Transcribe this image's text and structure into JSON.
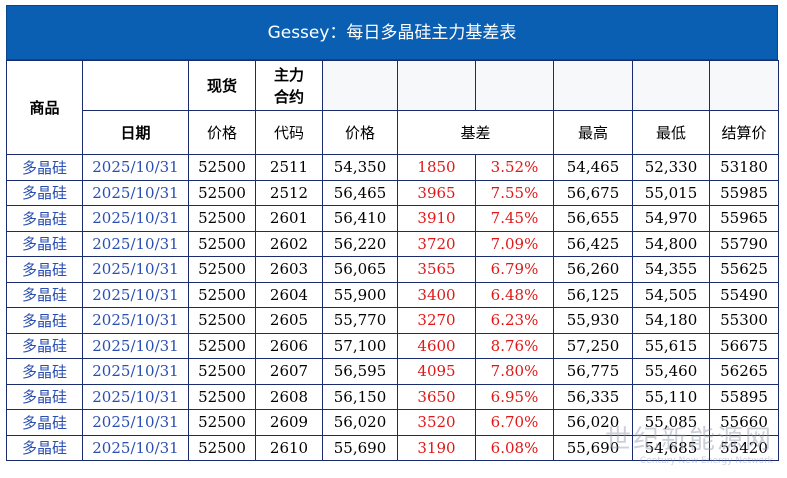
{
  "title": "Gessey：每日多晶硅主力基差表",
  "headers": {
    "product": "商品",
    "spot": "现货",
    "main_contract": "主力\n合约",
    "date": "日期",
    "spot_price": "价格",
    "code": "代码",
    "price": "价格",
    "basis": "基差",
    "high": "最高",
    "low": "最低",
    "settle": "结算价"
  },
  "rows": [
    {
      "product": "多晶硅",
      "date": "2025/10/31",
      "spot": "52500",
      "code": "2511",
      "price": "54,350",
      "basis": "1850",
      "basis_pct": "3.52%",
      "high": "54,465",
      "low": "52,330",
      "settle": "53180"
    },
    {
      "product": "多晶硅",
      "date": "2025/10/31",
      "spot": "52500",
      "code": "2512",
      "price": "56,465",
      "basis": "3965",
      "basis_pct": "7.55%",
      "high": "56,675",
      "low": "55,015",
      "settle": "55985"
    },
    {
      "product": "多晶硅",
      "date": "2025/10/31",
      "spot": "52500",
      "code": "2601",
      "price": "56,410",
      "basis": "3910",
      "basis_pct": "7.45%",
      "high": "56,655",
      "low": "54,970",
      "settle": "55965"
    },
    {
      "product": "多晶硅",
      "date": "2025/10/31",
      "spot": "52500",
      "code": "2602",
      "price": "56,220",
      "basis": "3720",
      "basis_pct": "7.09%",
      "high": "56,425",
      "low": "54,800",
      "settle": "55790"
    },
    {
      "product": "多晶硅",
      "date": "2025/10/31",
      "spot": "52500",
      "code": "2603",
      "price": "56,065",
      "basis": "3565",
      "basis_pct": "6.79%",
      "high": "56,260",
      "low": "54,355",
      "settle": "55625"
    },
    {
      "product": "多晶硅",
      "date": "2025/10/31",
      "spot": "52500",
      "code": "2604",
      "price": "55,900",
      "basis": "3400",
      "basis_pct": "6.48%",
      "high": "56,125",
      "low": "54,505",
      "settle": "55490"
    },
    {
      "product": "多晶硅",
      "date": "2025/10/31",
      "spot": "52500",
      "code": "2605",
      "price": "55,770",
      "basis": "3270",
      "basis_pct": "6.23%",
      "high": "55,930",
      "low": "54,180",
      "settle": "55300"
    },
    {
      "product": "多晶硅",
      "date": "2025/10/31",
      "spot": "52500",
      "code": "2606",
      "price": "57,100",
      "basis": "4600",
      "basis_pct": "8.76%",
      "high": "57,250",
      "low": "55,615",
      "settle": "56675"
    },
    {
      "product": "多晶硅",
      "date": "2025/10/31",
      "spot": "52500",
      "code": "2607",
      "price": "56,595",
      "basis": "4095",
      "basis_pct": "7.80%",
      "high": "56,775",
      "low": "55,460",
      "settle": "56265"
    },
    {
      "product": "多晶硅",
      "date": "2025/10/31",
      "spot": "52500",
      "code": "2608",
      "price": "56,150",
      "basis": "3650",
      "basis_pct": "6.95%",
      "high": "56,335",
      "low": "55,110",
      "settle": "55895"
    },
    {
      "product": "多晶硅",
      "date": "2025/10/31",
      "spot": "52500",
      "code": "2609",
      "price": "56,020",
      "basis": "3520",
      "basis_pct": "6.70%",
      "high": "56,020",
      "low": "55,085",
      "settle": "55660"
    },
    {
      "product": "多晶硅",
      "date": "2025/10/31",
      "spot": "52500",
      "code": "2610",
      "price": "55,690",
      "basis": "3190",
      "basis_pct": "6.08%",
      "high": "55,690",
      "low": "54,685",
      "settle": "55420"
    }
  ],
  "watermark": {
    "main": "世纪新能源网",
    "sub": "Century New Energy Network"
  },
  "colors": {
    "title_bg": "#0b5fb3",
    "link_blue": "#2b4fb0",
    "basis_red": "#e01818"
  }
}
